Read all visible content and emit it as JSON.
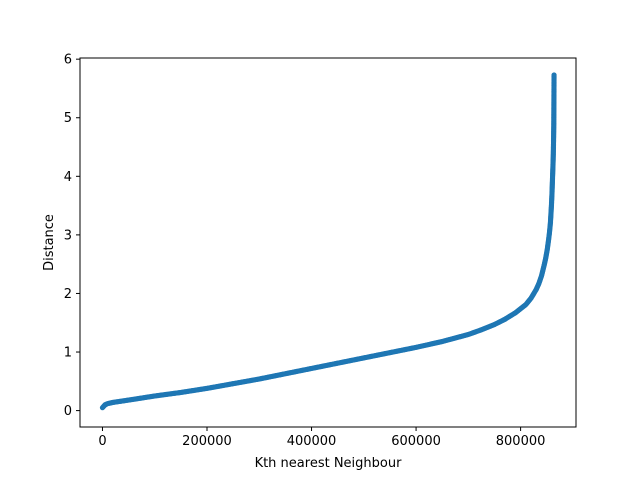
{
  "chart_data": {
    "type": "scatter",
    "title": "",
    "xlabel": "Kth nearest Neighbour",
    "ylabel": "Distance",
    "xlim": [
      -43000,
      906000
    ],
    "ylim": [
      -0.28,
      6.02
    ],
    "xticks": [
      0,
      200000,
      400000,
      600000,
      800000
    ],
    "xtick_labels": [
      "0",
      "200000",
      "400000",
      "600000",
      "800000"
    ],
    "yticks": [
      0,
      1,
      2,
      3,
      4,
      5,
      6
    ],
    "ytick_labels": [
      "0",
      "1",
      "2",
      "3",
      "4",
      "5",
      "6"
    ],
    "grid": false,
    "marker_color": "#1f77b4",
    "series": [
      {
        "name": "",
        "x": [
          0,
          5000,
          10000,
          20000,
          50000,
          100000,
          150000,
          200000,
          250000,
          300000,
          350000,
          400000,
          450000,
          500000,
          550000,
          600000,
          650000,
          700000,
          725000,
          750000,
          770000,
          790000,
          800000,
          810000,
          820000,
          830000,
          835000,
          840000,
          845000,
          848000,
          851000,
          853000,
          855000,
          857000,
          858000,
          859000,
          860000,
          861000,
          862000,
          862500,
          863000,
          863500,
          864000
        ],
        "y": [
          0.05,
          0.1,
          0.12,
          0.14,
          0.18,
          0.25,
          0.31,
          0.38,
          0.46,
          0.54,
          0.63,
          0.72,
          0.81,
          0.9,
          0.99,
          1.08,
          1.18,
          1.3,
          1.38,
          1.47,
          1.56,
          1.67,
          1.74,
          1.81,
          1.92,
          2.07,
          2.17,
          2.3,
          2.48,
          2.6,
          2.75,
          2.88,
          3.02,
          3.2,
          3.35,
          3.5,
          3.7,
          3.95,
          4.2,
          4.35,
          4.57,
          4.88,
          5.73
        ]
      }
    ]
  }
}
